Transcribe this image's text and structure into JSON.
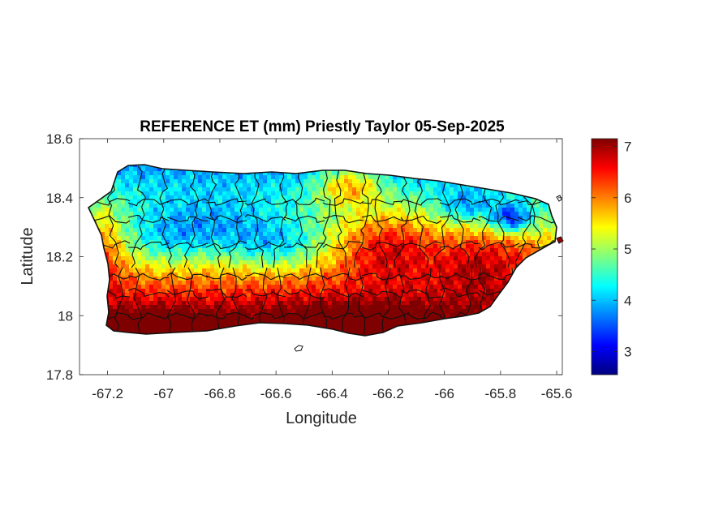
{
  "title": "REFERENCE ET (mm) Priestly Taylor 05-Sep-2025",
  "xlabel": "Longitude",
  "ylabel": "Latitude",
  "chart_data": {
    "type": "heatmap",
    "title": "REFERENCE ET (mm) Priestly Taylor 05-Sep-2025",
    "xlabel": "Longitude",
    "ylabel": "Latitude",
    "xlim": [
      -67.3,
      -65.58
    ],
    "ylim": [
      17.8,
      18.6
    ],
    "x_ticks": [
      -67.2,
      -67,
      -66.8,
      -66.6,
      -66.4,
      -66.2,
      -66,
      -65.8,
      -65.6
    ],
    "x_tick_labels": [
      "-67.2",
      "-67",
      "-66.8",
      "-66.6",
      "-66.4",
      "-66.2",
      "-66",
      "-65.8",
      "-65.6"
    ],
    "y_ticks": [
      17.8,
      18,
      18.2,
      18.4,
      18.6
    ],
    "y_tick_labels": [
      "17.8",
      "18",
      "18.2",
      "18.4",
      "18.6"
    ],
    "colorbar": {
      "colormap": "jet",
      "clim": [
        2.55,
        7.15
      ],
      "ticks": [
        3,
        4,
        5,
        6,
        7
      ],
      "tick_labels": [
        "3",
        "4",
        "5",
        "6",
        "7"
      ]
    },
    "colormap_stops": [
      "#00007f",
      "#0000ff",
      "#007fff",
      "#00ffff",
      "#7fff7f",
      "#ffff00",
      "#ff7f00",
      "#ff0000",
      "#7f0000"
    ],
    "grid": false
  }
}
